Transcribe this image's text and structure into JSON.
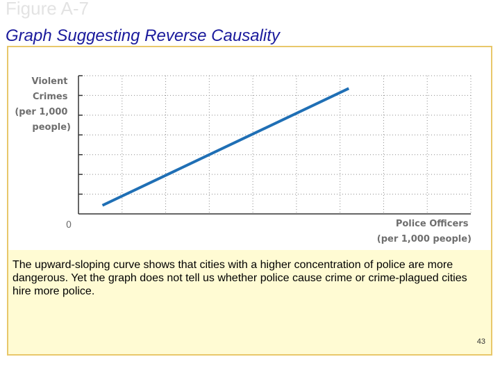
{
  "slide": {
    "figure_label": "Figure A-7",
    "title": "Graph Suggesting Reverse Causality",
    "caption": "The upward-sloping curve shows that cities with a higher concentration of police are more dangerous. Yet the graph does not tell us whether police cause crime or crime-plagued cities hire more police.",
    "page_number": "43"
  },
  "chart_data": {
    "type": "line",
    "title": "",
    "ylabel_lines": [
      "Violent",
      "Crimes",
      "(per 1,000",
      "people)"
    ],
    "xlabel_lines": [
      "Police Officers",
      "(per 1,000 people)"
    ],
    "origin_label": "0",
    "grid": true,
    "x_ticks": 9,
    "y_ticks": 7,
    "xlim": [
      0,
      9
    ],
    "ylim": [
      0,
      6.5
    ],
    "series": [
      {
        "color": "#1f6fb5",
        "x": [
          0.55,
          6.2
        ],
        "y": [
          0.4,
          5.9
        ]
      }
    ]
  },
  "colors": {
    "title": "#1a1a9c",
    "figure_label": "#e3e3e3",
    "panel_background": "#fffbd3",
    "panel_border": "#e8c76a",
    "axis_text": "#6e6e6e",
    "line": "#1f6fb5"
  }
}
